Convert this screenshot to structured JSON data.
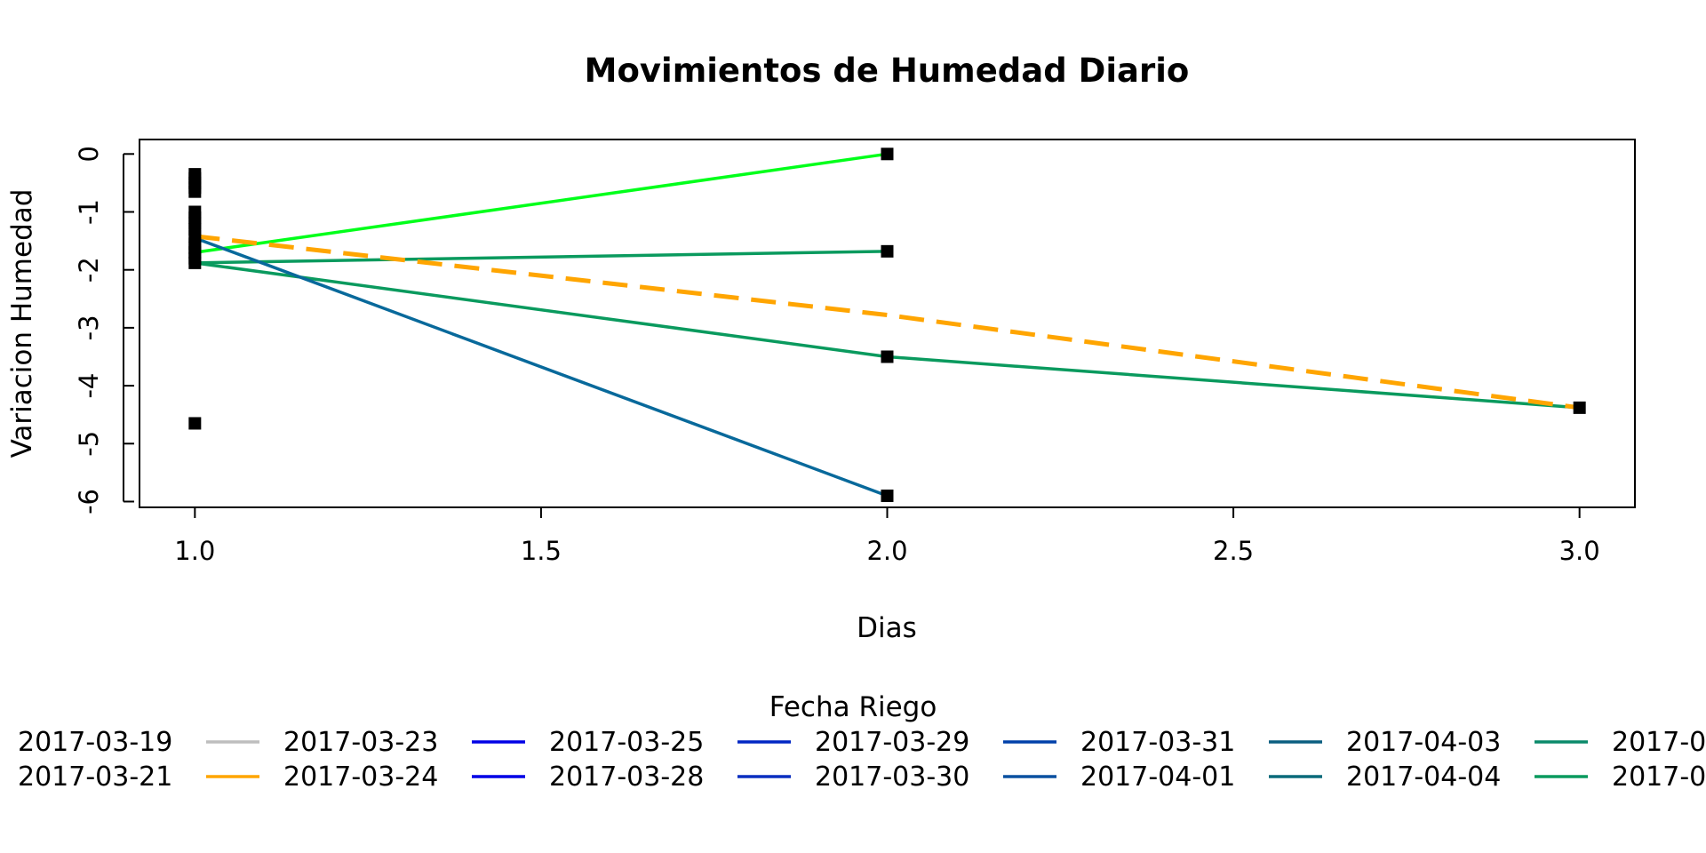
{
  "chart_data": {
    "type": "line",
    "title": "Movimientos de Humedad Diario",
    "xlabel": "Dias",
    "ylabel": "Variacion Humedad",
    "xlim": [
      0.92,
      3.08
    ],
    "ylim": [
      -6.1,
      0.25
    ],
    "x_ticks": [
      "1.0",
      "1.5",
      "2.0",
      "2.5",
      "3.0"
    ],
    "x_tick_values": [
      1.0,
      1.5,
      2.0,
      2.5,
      3.0
    ],
    "y_ticks": [
      "0",
      "-1",
      "-2",
      "-3",
      "-4",
      "-5",
      "-6"
    ],
    "y_tick_values": [
      0,
      -1,
      -2,
      -3,
      -4,
      -5,
      -6
    ],
    "series": [
      {
        "color": "#00ff1a",
        "dash": false,
        "x": [
          1,
          2
        ],
        "y": [
          -1.7,
          0.0
        ]
      },
      {
        "color": "#0a9a5e",
        "dash": false,
        "x": [
          1,
          2
        ],
        "y": [
          -1.88,
          -1.68
        ]
      },
      {
        "color": "#0a9a5e",
        "dash": false,
        "x": [
          1,
          2,
          3
        ],
        "y": [
          -1.88,
          -3.5,
          -4.38
        ]
      },
      {
        "color": "#08699b",
        "dash": false,
        "x": [
          1,
          2
        ],
        "y": [
          -1.45,
          -5.9
        ]
      },
      {
        "color": "#ffa500",
        "dash": true,
        "x": [
          1,
          2,
          3
        ],
        "y": [
          -1.42,
          -2.78,
          -4.38
        ]
      }
    ],
    "points": [
      {
        "x": 1,
        "y": -0.35
      },
      {
        "x": 1,
        "y": -0.42
      },
      {
        "x": 1,
        "y": -0.5
      },
      {
        "x": 1,
        "y": -0.58
      },
      {
        "x": 1,
        "y": -0.65
      },
      {
        "x": 1,
        "y": -1.0
      },
      {
        "x": 1,
        "y": -1.1
      },
      {
        "x": 1,
        "y": -1.2
      },
      {
        "x": 1,
        "y": -1.3
      },
      {
        "x": 1,
        "y": -1.42
      },
      {
        "x": 1,
        "y": -1.55
      },
      {
        "x": 1,
        "y": -1.62
      },
      {
        "x": 1,
        "y": -1.7
      },
      {
        "x": 1,
        "y": -1.8
      },
      {
        "x": 1,
        "y": -1.88
      },
      {
        "x": 1,
        "y": -4.65
      },
      {
        "x": 2,
        "y": 0.0
      },
      {
        "x": 2,
        "y": -1.68
      },
      {
        "x": 2,
        "y": -3.5
      },
      {
        "x": 2,
        "y": -5.9
      },
      {
        "x": 3,
        "y": -4.38
      }
    ],
    "legend": {
      "title": "Fecha Riego",
      "position": "bottom",
      "entries": [
        {
          "label": "2017-03-19",
          "color": "#000000"
        },
        {
          "label": "2017-03-21",
          "color": "#000000"
        },
        {
          "label": "2017-03-23",
          "color": "#bebebe"
        },
        {
          "label": "2017-03-24",
          "color": "#ffa500"
        },
        {
          "label": "2017-03-25",
          "color": "#0000e6"
        },
        {
          "label": "2017-03-28",
          "color": "#0000e6"
        },
        {
          "label": "2017-03-29",
          "color": "#0026c4"
        },
        {
          "label": "2017-03-30",
          "color": "#0a2ec0"
        },
        {
          "label": "2017-03-31",
          "color": "#0040aa"
        },
        {
          "label": "2017-04-01",
          "color": "#0a50a0"
        },
        {
          "label": "2017-04-03",
          "color": "#0a5e80"
        },
        {
          "label": "2017-04-04",
          "color": "#0a6a7a"
        },
        {
          "label": "2017-0",
          "color": "#0a8a6a"
        },
        {
          "label": "2017-0",
          "color": "#0a9a5e"
        }
      ]
    }
  }
}
